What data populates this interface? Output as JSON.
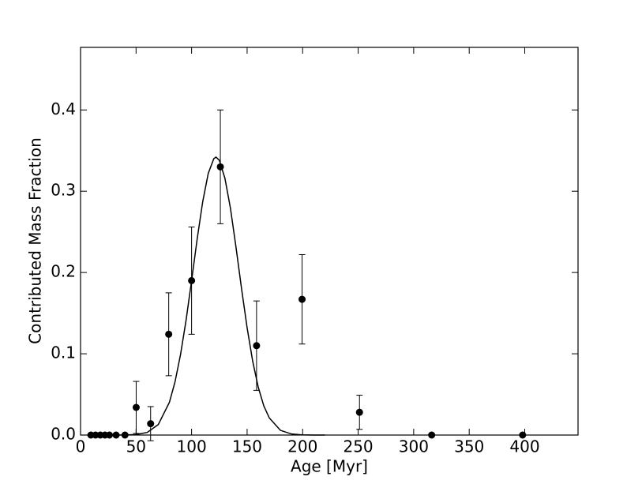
{
  "chart_data": {
    "type": "scatter",
    "xlabel": "Age [Myr]",
    "ylabel": "Contributed Mass Fraction",
    "x": [
      9.3,
      13.5,
      17.8,
      22,
      26,
      32,
      40,
      50.1,
      63.1,
      79.4,
      100,
      125.9,
      158.5,
      199.5,
      251.2,
      316.2,
      398.1
    ],
    "values": [
      0,
      0,
      0,
      0,
      0,
      0,
      0,
      0.034,
      0.014,
      0.124,
      0.19,
      0.33,
      0.11,
      0.167,
      0.028,
      0,
      0
    ],
    "errors": [
      null,
      null,
      null,
      null,
      null,
      null,
      null,
      0.032,
      0.021,
      0.051,
      0.066,
      0.07,
      0.055,
      0.055,
      0.021,
      null,
      null
    ],
    "color": "#000000",
    "fit": {
      "type": "line",
      "color": "#000000",
      "x": [
        30,
        40,
        50,
        60,
        70,
        80,
        85,
        90,
        95,
        100,
        105,
        110,
        115,
        120,
        122,
        125,
        130,
        135,
        140,
        145,
        150,
        155,
        160,
        165,
        170,
        180,
        190,
        200,
        210,
        220
      ],
      "values": [
        0,
        0.0001,
        0.0006,
        0.0032,
        0.0129,
        0.0402,
        0.065,
        0.0987,
        0.141,
        0.19,
        0.241,
        0.287,
        0.322,
        0.34,
        0.342,
        0.338,
        0.316,
        0.279,
        0.231,
        0.18,
        0.132,
        0.091,
        0.059,
        0.036,
        0.021,
        0.0058,
        0.0013,
        0.0002,
        0,
        0
      ]
    },
    "xlim": [
      0,
      448
    ],
    "ylim": [
      0,
      0.477
    ],
    "xticks": [
      0,
      50,
      100,
      150,
      200,
      250,
      300,
      350,
      400
    ],
    "yticks": [
      {
        "value": 0,
        "label": "0.0"
      },
      0.1,
      0.2,
      0.3,
      0.4
    ]
  }
}
